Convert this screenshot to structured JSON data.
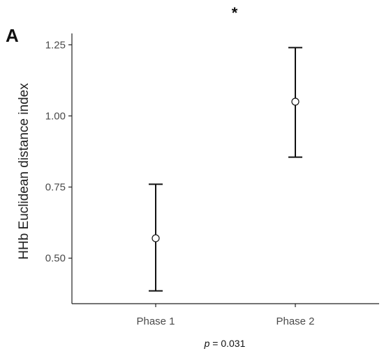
{
  "panel_label": "A",
  "significance_marker": "*",
  "p_label_prefix": "p",
  "p_label_rest": " = 0.031",
  "colors": {
    "axis": "#222222",
    "errorbar": "#111111",
    "point_fill": "#ffffff"
  },
  "chart_data": {
    "type": "scatter",
    "title": "",
    "xlabel": "",
    "ylabel": "HHb Euclidean distance index",
    "categories": [
      "Phase 1",
      "Phase 2"
    ],
    "mean": [
      0.57,
      1.05
    ],
    "lower": [
      0.385,
      0.855
    ],
    "upper": [
      0.76,
      1.24
    ],
    "ylim": [
      0.34,
      1.29
    ],
    "yticks": [
      0.5,
      0.75,
      1.0,
      1.25
    ],
    "ytick_labels": [
      "0.50",
      "0.75",
      "1.00",
      "1.25"
    ],
    "grid": false,
    "legend": "none"
  }
}
